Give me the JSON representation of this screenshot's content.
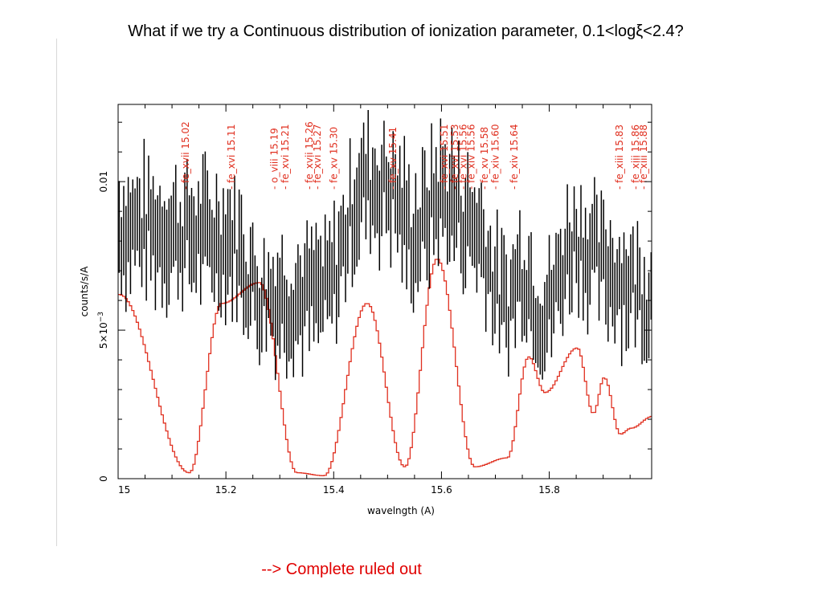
{
  "slide": {
    "title": "What if we try a Continuous distribution of ionization parameter, 0.1<logξ<2.4?",
    "conclusion": "--> Complete ruled out"
  },
  "colors": {
    "data": "#000000",
    "model": "#e03020",
    "line_labels": "#e03020",
    "conclusion": "#e00000"
  },
  "chart_data": {
    "type": "line",
    "xlabel": "wavelngth (A)",
    "ylabel": "counts/s/A",
    "xlim": [
      15.0,
      15.99
    ],
    "ylim": [
      0,
      0.0126
    ],
    "x_ticks": [
      15.0,
      15.2,
      15.4,
      15.6,
      15.8
    ],
    "x_tick_labels": [
      "15",
      "15.2",
      "15.4",
      "15.6",
      "15.8"
    ],
    "y_ticks": [
      0,
      0.005,
      0.01
    ],
    "y_tick_labels": [
      "0",
      "5×10",
      "0.01"
    ],
    "y_tick_exponent": "−3",
    "line_ids": [
      {
        "label": "- fe_xvii  15.02",
        "x": 15.125
      },
      {
        "label": "- fe_xvi   15.11",
        "x": 15.21
      },
      {
        "label": "- o_viii   15.19",
        "x": 15.29
      },
      {
        "label": "- fe_xvi   15.21",
        "x": 15.31
      },
      {
        "label": "- fe_xvii  15.26",
        "x": 15.355
      },
      {
        "label": "- fe_xvi   15.27",
        "x": 15.37
      },
      {
        "label": "- fe_xv    15.30",
        "x": 15.4
      },
      {
        "label": "- fe_xv    15.41",
        "x": 15.51
      },
      {
        "label": "- fe_xvi   15.51",
        "x": 15.605
      },
      {
        "label": "- fe_xvi   15.53",
        "x": 15.625
      },
      {
        "label": "- fe_xvi   15.56",
        "x": 15.64
      },
      {
        "label": "- fe_xiv   15.56",
        "x": 15.655
      },
      {
        "label": "- fe_xv    15.58",
        "x": 15.68
      },
      {
        "label": "- fe_xiv   15.60",
        "x": 15.7
      },
      {
        "label": "- fe_xiv   15.64",
        "x": 15.735
      },
      {
        "label": "- fe_xiii  15.83",
        "x": 15.93
      },
      {
        "label": "- fe_xiii  15.86",
        "x": 15.96
      },
      {
        "label": "- fe_xiii  15.88",
        "x": 15.975
      }
    ],
    "series": [
      {
        "role": "data with error bars",
        "x": [
          15.0,
          15.2,
          15.27,
          15.34,
          15.38,
          15.46,
          15.5,
          15.55,
          15.6,
          15.66,
          15.72,
          15.75,
          15.79,
          15.85,
          15.9,
          15.99
        ],
        "y": [
          0.0085,
          0.0081,
          0.0062,
          0.0061,
          0.0062,
          0.0099,
          0.0098,
          0.0082,
          0.0096,
          0.0085,
          0.0058,
          0.0071,
          0.0056,
          0.0081,
          0.0071,
          0.0062
        ],
        "err": [
          0.0015,
          0.0015,
          0.0014,
          0.0014,
          0.0014,
          0.0015,
          0.0015,
          0.0015,
          0.0015,
          0.0015,
          0.0013,
          0.0014,
          0.0013,
          0.0014,
          0.0014,
          0.0014
        ]
      },
      {
        "role": "model",
        "x": [
          15.0,
          15.13,
          15.19,
          15.26,
          15.33,
          15.38,
          15.46,
          15.53,
          15.59,
          15.66,
          15.72,
          15.76,
          15.79,
          15.85,
          15.88,
          15.9,
          15.93,
          15.95,
          15.99
        ],
        "y": [
          0.0062,
          0.0002,
          0.0059,
          0.0066,
          0.0002,
          0.0001,
          0.0059,
          0.0004,
          0.0074,
          0.0004,
          0.0007,
          0.0041,
          0.0029,
          0.0044,
          0.0022,
          0.0034,
          0.0015,
          0.0017,
          0.0021
        ]
      }
    ]
  }
}
